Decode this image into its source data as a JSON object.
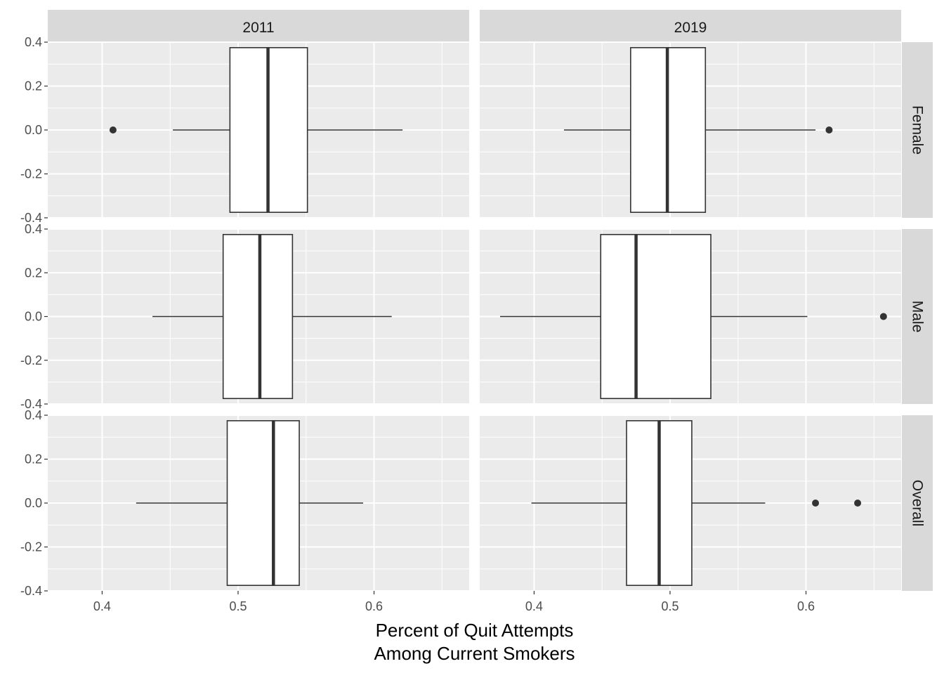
{
  "chart_data": {
    "type": "boxplot",
    "xlabel": [
      "Percent of Quit Attempts",
      "Among Current Smokers"
    ],
    "ylabel": "",
    "column_facets": [
      "2011",
      "2019"
    ],
    "row_facets": [
      "Female",
      "Male",
      "Overall"
    ],
    "xlim": [
      0.36,
      0.67
    ],
    "ylim": [
      -0.4,
      0.4
    ],
    "x_ticks": [
      0.4,
      0.5,
      0.6
    ],
    "x_tick_labels": [
      "0.4",
      "0.5",
      "0.6"
    ],
    "y_ticks": [
      0.4,
      0.2,
      0.0,
      -0.2,
      -0.4
    ],
    "y_tick_labels": [
      "0.4",
      "0.2",
      "0.0",
      "-0.2",
      "-0.4"
    ],
    "grid": true,
    "panels": [
      {
        "year": "2011",
        "group": "Female",
        "whisker_low": 0.452,
        "q1": 0.494,
        "median": 0.522,
        "q3": 0.551,
        "whisker_high": 0.621,
        "outliers": [
          0.408
        ]
      },
      {
        "year": "2019",
        "group": "Female",
        "whisker_low": 0.422,
        "q1": 0.471,
        "median": 0.498,
        "q3": 0.526,
        "whisker_high": 0.607,
        "outliers": [
          0.617
        ]
      },
      {
        "year": "2011",
        "group": "Male",
        "whisker_low": 0.437,
        "q1": 0.489,
        "median": 0.516,
        "q3": 0.54,
        "whisker_high": 0.613,
        "outliers": []
      },
      {
        "year": "2019",
        "group": "Male",
        "whisker_low": 0.375,
        "q1": 0.449,
        "median": 0.475,
        "q3": 0.53,
        "whisker_high": 0.601,
        "outliers": [
          0.657
        ]
      },
      {
        "year": "2011",
        "group": "Overall",
        "whisker_low": 0.425,
        "q1": 0.492,
        "median": 0.526,
        "q3": 0.545,
        "whisker_high": 0.592,
        "outliers": []
      },
      {
        "year": "2019",
        "group": "Overall",
        "whisker_low": 0.398,
        "q1": 0.468,
        "median": 0.492,
        "q3": 0.516,
        "whisker_high": 0.57,
        "outliers": [
          0.607,
          0.638
        ]
      }
    ]
  }
}
